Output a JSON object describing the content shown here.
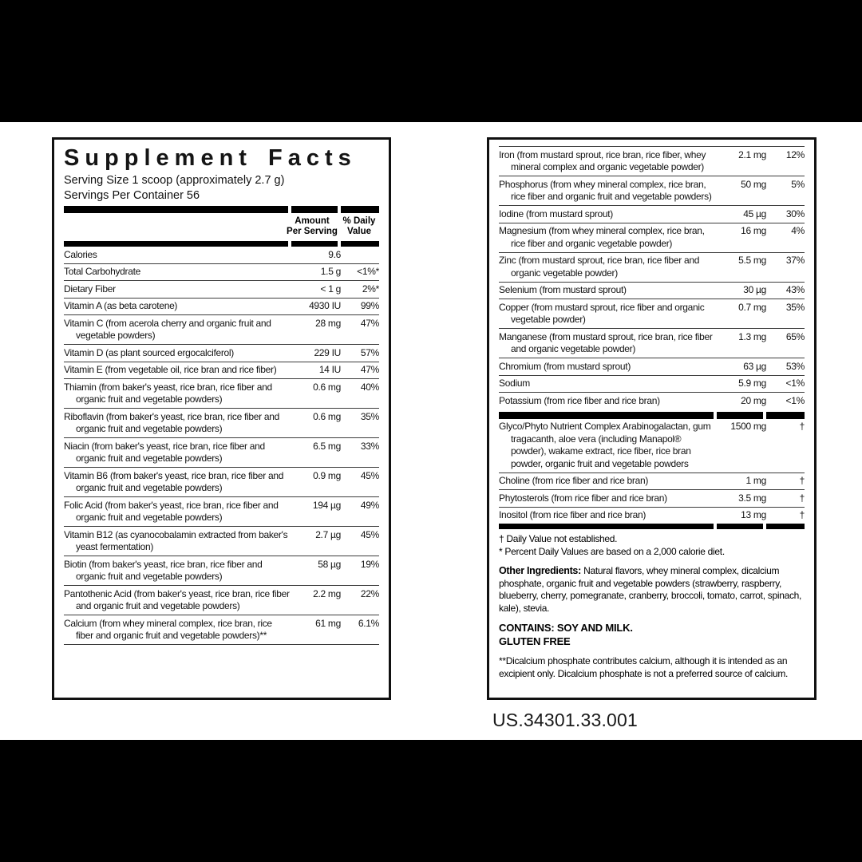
{
  "colors": {
    "background": "#ffffff",
    "bar": "#000000",
    "text": "#121212",
    "rule": "#3c3c3c"
  },
  "page": {
    "product_code": "US.34301.33.001"
  },
  "left_panel": {
    "title": "Supplement Facts",
    "serving_size": "Serving Size 1 scoop (approximately 2.7 g)",
    "servings_per_container": "Servings Per Container 56",
    "col_amount": "Amount Per Serving",
    "col_dv": "% Daily Value",
    "rows": [
      {
        "name": "Calories",
        "amount": "9.6",
        "dv": ""
      },
      {
        "name": "Total Carbohydrate",
        "amount": "1.5 g",
        "dv": "<1%*"
      },
      {
        "name": "Dietary Fiber",
        "amount": "< 1 g",
        "dv": "2%*"
      },
      {
        "name": "Vitamin A (as beta carotene)",
        "amount": "4930 IU",
        "dv": "99%"
      },
      {
        "name": "Vitamin C (from acerola cherry and organic fruit and vegetable powders)",
        "amount": "28 mg",
        "dv": "47%"
      },
      {
        "name": "Vitamin D (as plant sourced ergocalciferol)",
        "amount": "229 IU",
        "dv": "57%"
      },
      {
        "name": "Vitamin E (from vegetable oil, rice bran and rice fiber)",
        "amount": "14 IU",
        "dv": "47%"
      },
      {
        "name": "Thiamin (from baker's yeast, rice bran, rice fiber and organic fruit and vegetable powders)",
        "amount": "0.6 mg",
        "dv": "40%"
      },
      {
        "name": "Riboflavin (from baker's yeast, rice bran, rice fiber and organic fruit and vegetable powders)",
        "amount": "0.6 mg",
        "dv": "35%"
      },
      {
        "name": "Niacin (from baker's yeast, rice bran, rice fiber and organic fruit and vegetable powders)",
        "amount": "6.5 mg",
        "dv": "33%"
      },
      {
        "name": "Vitamin B6 (from baker's yeast, rice bran, rice fiber and organic fruit and vegetable powders)",
        "amount": "0.9 mg",
        "dv": "45%"
      },
      {
        "name": "Folic Acid (from baker's yeast, rice bran, rice fiber and organic fruit and vegetable powders)",
        "amount": "194 µg",
        "dv": "49%"
      },
      {
        "name": "Vitamin B12 (as cyanocobalamin extracted from baker's yeast fermentation)",
        "amount": "2.7 µg",
        "dv": "45%"
      },
      {
        "name": "Biotin (from baker's yeast, rice bran, rice fiber and organic fruit and vegetable powders)",
        "amount": "58 µg",
        "dv": "19%"
      },
      {
        "name": "Pantothenic Acid (from baker's yeast, rice bran, rice fiber and organic fruit and vegetable powders)",
        "amount": "2.2 mg",
        "dv": "22%"
      },
      {
        "name": "Calcium (from whey mineral complex, rice bran, rice fiber and organic fruit and vegetable powders)**",
        "amount": "61 mg",
        "dv": "6.1%"
      }
    ]
  },
  "right_panel": {
    "rows": [
      {
        "name": "Iron (from mustard sprout, rice bran, rice fiber, whey mineral complex and organic vegetable powder)",
        "amount": "2.1 mg",
        "dv": "12%"
      },
      {
        "name": "Phosphorus (from whey mineral complex, rice bran, rice fiber and organic fruit and vegetable powders)",
        "amount": "50 mg",
        "dv": "5%"
      },
      {
        "name": "Iodine (from mustard sprout)",
        "amount": "45 µg",
        "dv": "30%"
      },
      {
        "name": "Magnesium (from whey mineral complex, rice bran, rice fiber and organic vegetable powder)",
        "amount": "16 mg",
        "dv": "4%"
      },
      {
        "name": "Zinc (from mustard sprout, rice bran, rice fiber and organic vegetable powder)",
        "amount": "5.5 mg",
        "dv": "37%"
      },
      {
        "name": "Selenium (from mustard sprout)",
        "amount": "30 µg",
        "dv": "43%"
      },
      {
        "name": "Copper (from mustard sprout, rice fiber and organic vegetable powder)",
        "amount": "0.7 mg",
        "dv": "35%"
      },
      {
        "name": "Manganese (from mustard sprout, rice bran, rice fiber and organic vegetable powder)",
        "amount": "1.3 mg",
        "dv": "65%"
      },
      {
        "name": "Chromium (from mustard sprout)",
        "amount": "63 µg",
        "dv": "53%"
      },
      {
        "name": "Sodium",
        "amount": "5.9 mg",
        "dv": "<1%"
      },
      {
        "name": "Potassium (from rice fiber and rice bran)",
        "amount": "20 mg",
        "dv": "<1%"
      }
    ],
    "complex_rows": [
      {
        "name": "Glyco/Phyto Nutrient Complex Arabinogalactan, gum tragacanth, aloe vera (including Manapol® powder), wakame extract, rice fiber, rice bran powder, organic fruit and vegetable powders",
        "amount": "1500 mg",
        "dv": "†"
      },
      {
        "name": "Choline (from rice fiber and rice bran)",
        "amount": "1 mg",
        "dv": "†"
      },
      {
        "name": "Phytosterols (from rice fiber and rice bran)",
        "amount": "3.5 mg",
        "dv": "†"
      },
      {
        "name": "Inositol (from rice fiber and rice bran)",
        "amount": "13 mg",
        "dv": "†"
      }
    ],
    "footnote_dagger": "† Daily Value not established.",
    "footnote_star": "* Percent Daily Values are based on a 2,000 calorie diet.",
    "other_ingredients_label": "Other Ingredients: ",
    "other_ingredients_text": "Natural flavors, whey mineral complex, dicalcium phosphate, organic fruit and vegetable powders (strawberry, raspberry, blueberry, cherry, pomegranate, cranberry, broccoli, tomato, carrot, spinach, kale), stevia.",
    "contains_line": "CONTAINS: SOY AND MILK.",
    "gluten_line": "GLUTEN FREE",
    "dicalcium_note": "**Dicalcium phosphate contributes calcium, although it is intended as an excipient only. Dicalcium phosphate is not a preferred source of calcium."
  }
}
